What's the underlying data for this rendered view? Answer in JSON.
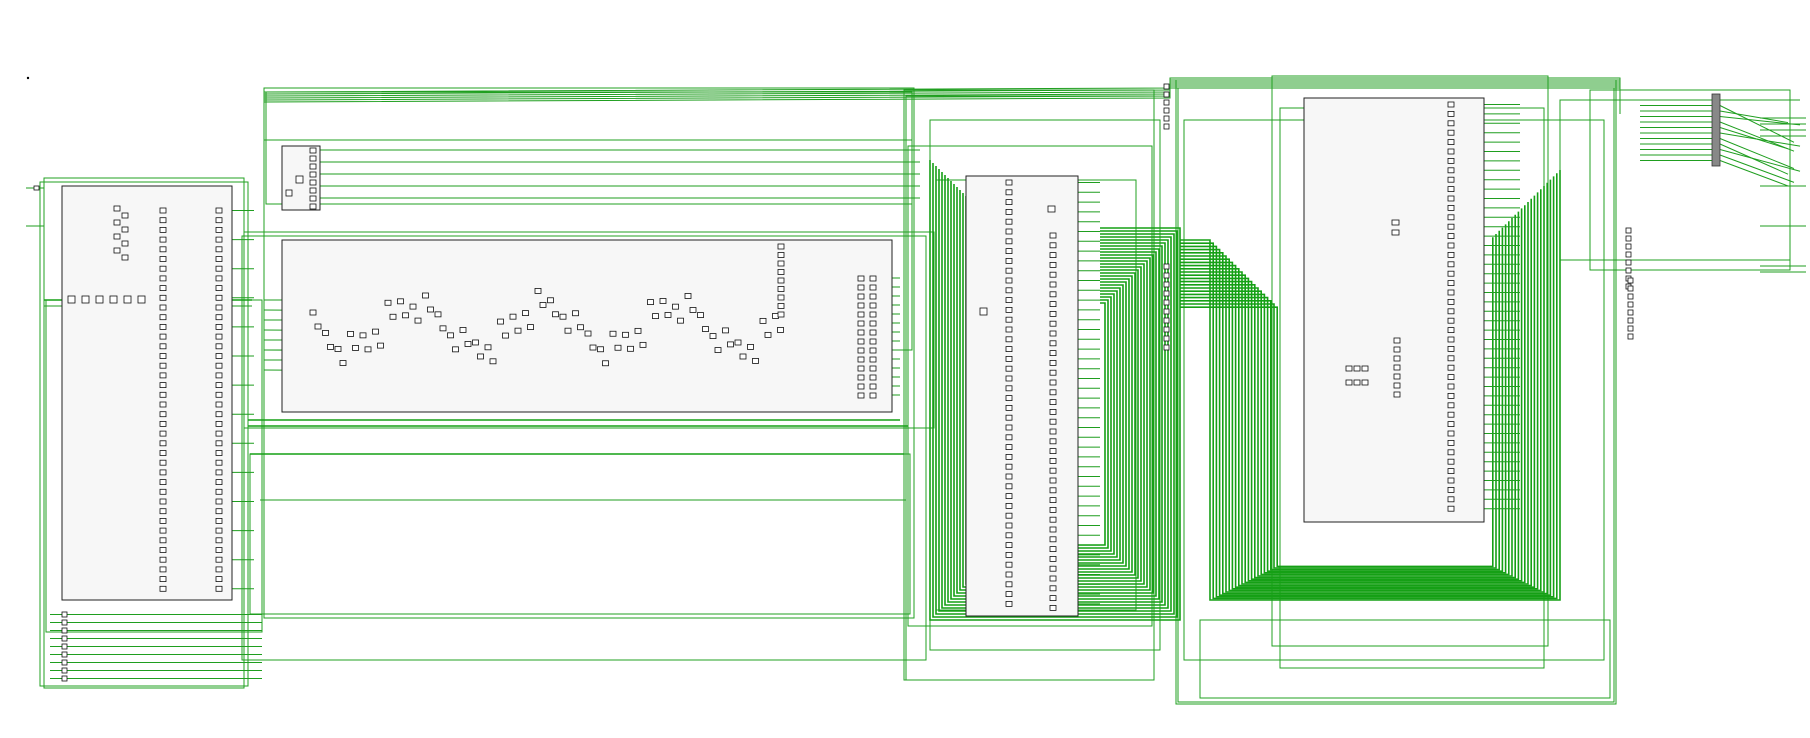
{
  "view": {
    "background": "#ffffff",
    "wire_color": "#1f9e1f",
    "frame_color": "#222222",
    "block_fill": "#f7f7f7"
  },
  "blocks": [
    {
      "id": "block-1",
      "kind": "hierarchical-cell"
    },
    {
      "id": "block-2",
      "kind": "hierarchical-cell"
    },
    {
      "id": "block-3",
      "kind": "hierarchical-cell"
    },
    {
      "id": "block-4",
      "kind": "hierarchical-cell"
    },
    {
      "id": "block-5",
      "kind": "hierarchical-cell"
    },
    {
      "id": "block-6",
      "kind": "bus-connector"
    }
  ]
}
